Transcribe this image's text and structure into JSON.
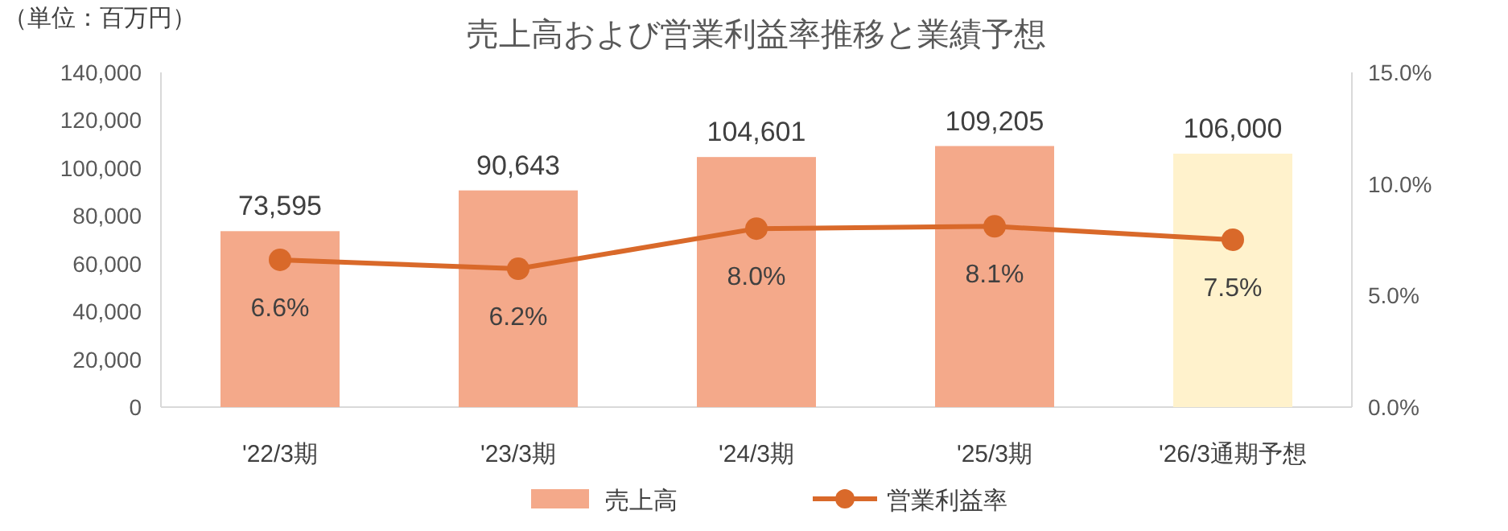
{
  "chart_data": {
    "type": "bar",
    "title": "売上高および営業利益率推移と業績予想",
    "annotations": [
      "（単位：百万円）"
    ],
    "categories": [
      "'22/3期",
      "'23/3期",
      "'24/3期",
      "'25/3期",
      "'26/3通期予想"
    ],
    "series": [
      {
        "name": "売上高",
        "color": "#f4a98a",
        "colors": [
          "#f4a98a",
          "#f4a98a",
          "#f4a98a",
          "#f4a98a",
          "#fff2cc"
        ],
        "values": [
          73595,
          90643,
          104601,
          109205,
          106000
        ],
        "value_labels": [
          "73,595",
          "90,643",
          "104,601",
          "109,205",
          "106,000"
        ]
      },
      {
        "name": "営業利益率",
        "type": "line",
        "axis": "y2",
        "color": "#d9692a",
        "marker": "circle",
        "line_style": "solid",
        "values": [
          6.6,
          6.2,
          8.0,
          8.1,
          7.5
        ],
        "value_labels": [
          "6.6%",
          "6.2%",
          "8.0%",
          "8.1%",
          "7.5%"
        ]
      }
    ],
    "ylim": [
      0,
      140000
    ],
    "yticks": [
      {
        "value": 0,
        "label": "0"
      },
      {
        "value": 20000,
        "label": "20,000"
      },
      {
        "value": 40000,
        "label": "40,000"
      },
      {
        "value": 60000,
        "label": "60,000"
      },
      {
        "value": 80000,
        "label": "80,000"
      },
      {
        "value": 100000,
        "label": "100,000"
      },
      {
        "value": 120000,
        "label": "120,000"
      },
      {
        "value": 140000,
        "label": "140,000"
      }
    ],
    "y2lim": [
      0,
      15
    ],
    "y2ticks": [
      {
        "value": 0,
        "label": "0.0%"
      },
      {
        "value": 5,
        "label": "5.0%"
      },
      {
        "value": 10,
        "label": "10.0%"
      },
      {
        "value": 15,
        "label": "15.0%"
      }
    ],
    "legend": "bottom"
  }
}
